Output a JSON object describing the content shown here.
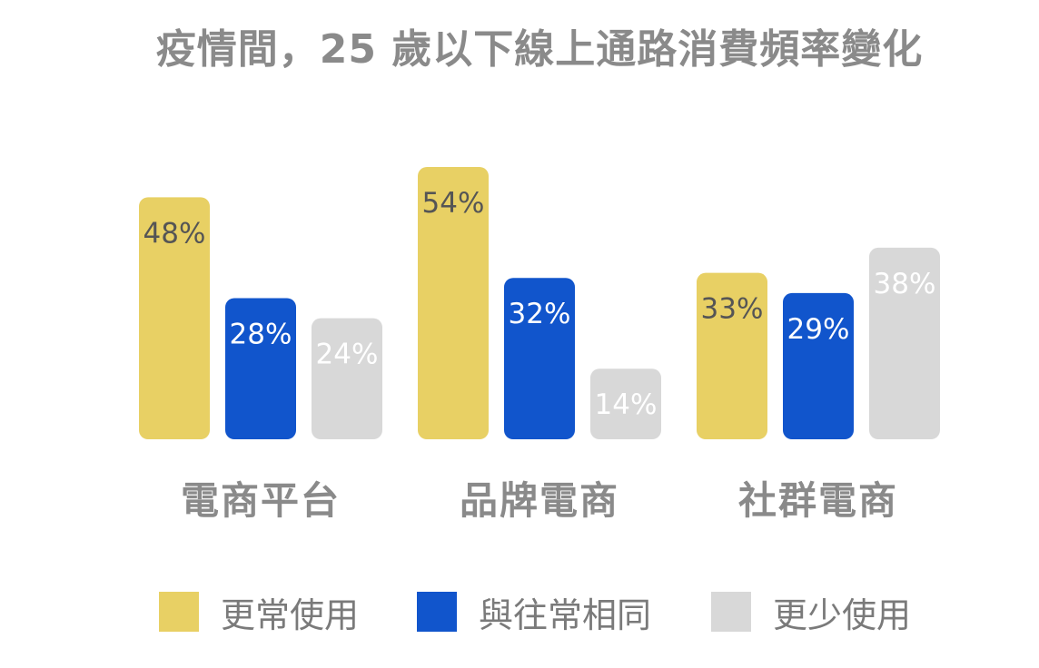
{
  "chart_data": {
    "type": "bar",
    "title": "疫情間，25 歲以下線上通路消費頻率變化",
    "xlabel": "",
    "ylabel": "",
    "ylim": [
      0,
      60
    ],
    "grid": false,
    "legend_position": "bottom",
    "categories": [
      "電商平台",
      "品牌電商",
      "社群電商"
    ],
    "series": [
      {
        "name": "更常使用",
        "values": [
          48,
          54,
          33
        ],
        "labels": [
          "48%",
          "54%",
          "33%"
        ],
        "color": "#e8d064",
        "label_color": "#555555"
      },
      {
        "name": "與往常相同",
        "values": [
          28,
          32,
          29
        ],
        "labels": [
          "28%",
          "32%",
          "29%"
        ],
        "color": "#1155cc",
        "label_color": "#ffffff"
      },
      {
        "name": "更少使用",
        "values": [
          24,
          14,
          38
        ],
        "labels": [
          "24%",
          "14%",
          "38%"
        ],
        "color": "#d8d8d8",
        "label_color": "#ffffff"
      }
    ]
  }
}
